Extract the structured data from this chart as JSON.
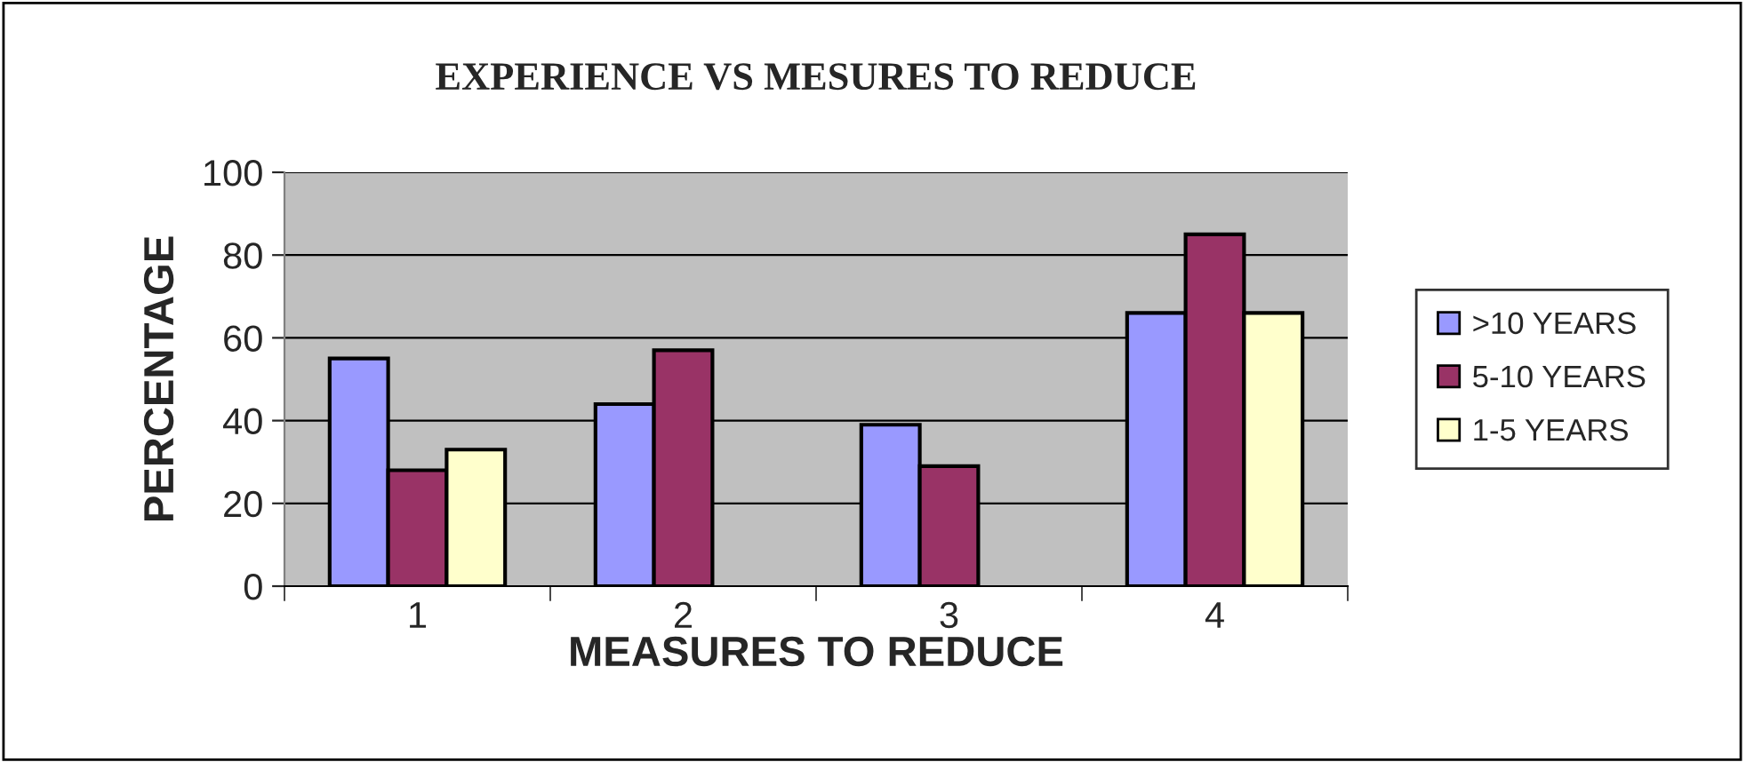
{
  "chart_data": {
    "type": "bar",
    "title": "EXPERIENCE VS MESURES TO REDUCE",
    "xlabel": "MEASURES TO REDUCE",
    "ylabel": "PERCENTAGE",
    "categories": [
      "1",
      "2",
      "3",
      "4"
    ],
    "series": [
      {
        "name": ">10 YEARS",
        "color": "#9999ff",
        "values": [
          55,
          44,
          39,
          66
        ]
      },
      {
        "name": "5-10 YEARS",
        "color": "#993366",
        "values": [
          28,
          57,
          29,
          85
        ]
      },
      {
        "name": "1-5 YEARS",
        "color": "#ffffcc",
        "values": [
          33,
          null,
          null,
          66
        ]
      }
    ],
    "ylim": [
      0,
      100
    ],
    "yticks": [
      0,
      20,
      40,
      60,
      80,
      100
    ],
    "grid": "y",
    "legend": "right"
  }
}
